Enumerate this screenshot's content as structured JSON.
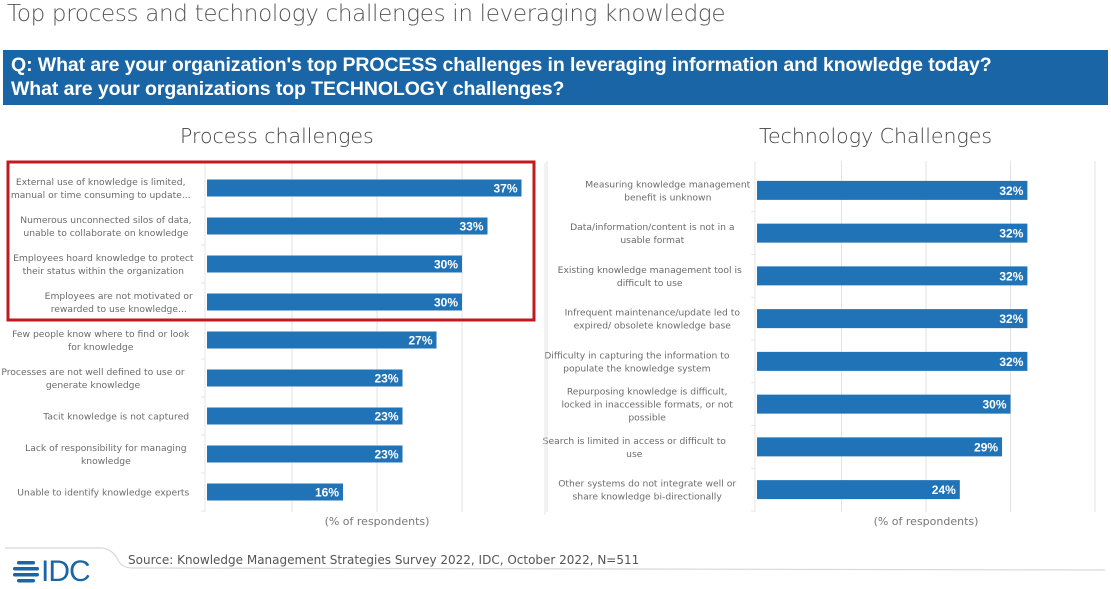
{
  "page": {
    "title": "Top process and technology challenges in leveraging knowledge",
    "question_line1": "Q: What are your organization's top PROCESS challenges in leveraging information and knowledge today?",
    "question_line2": "What are your organizations top TECHNOLOGY challenges?",
    "source": "Source: Knowledge Management Strategies Survey 2022, IDC, October 2022, N=511",
    "logo_text": "IDC",
    "colors": {
      "banner": "#1a65a6",
      "bar": "#2173b8",
      "highlight_box": "#c0191f",
      "grid": "#e2e2e2"
    }
  },
  "chart_data": [
    {
      "type": "bar",
      "orientation": "horizontal",
      "title": "Process challenges",
      "xlabel": "(% of respondents)",
      "ylabel": "",
      "xlim": [
        0,
        40
      ],
      "grid": true,
      "value_suffix": "%",
      "highlighted_categories": [
        0,
        1,
        2,
        3
      ],
      "categories": [
        [
          "External use of knowledge is limited,",
          "manual or time consuming to update..."
        ],
        [
          "Numerous unconnected silos of data,",
          "unable to collaborate on knowledge"
        ],
        [
          "Employees hoard knowledge to protect",
          "their status within the organization"
        ],
        [
          "Employees are not motivated or",
          "rewarded to use knowledge..."
        ],
        [
          "Few people know where to find or look",
          "for knowledge"
        ],
        [
          "Processes are not well defined to use or",
          "generate knowledge"
        ],
        [
          "Tacit knowledge is not captured"
        ],
        [
          "Lack of responsibility for managing",
          "knowledge"
        ],
        [
          "Unable to identify knowledge experts"
        ]
      ],
      "values": [
        37,
        33,
        30,
        30,
        27,
        23,
        23,
        23,
        16
      ]
    },
    {
      "type": "bar",
      "orientation": "horizontal",
      "title": "Technology Challenges",
      "xlabel": "(% of respondents)",
      "ylabel": "",
      "xlim": [
        0,
        40
      ],
      "grid": true,
      "value_suffix": "%",
      "categories": [
        [
          "Measuring knowledge management",
          "benefit is unknown"
        ],
        [
          "Data/information/content is not in a",
          "usable format"
        ],
        [
          "Existing knowledge management tool is",
          "difficult to use"
        ],
        [
          "Infrequent maintenance/update led to",
          "expired/ obsolete knowledge base"
        ],
        [
          "Difficulty in capturing the information to",
          "populate the knowledge system"
        ],
        [
          "Repurposing knowledge is difficult,",
          "locked in inaccessible formats, or not",
          "possible"
        ],
        [
          "Search is limited in access or difficult to",
          "use"
        ],
        [
          "Other systems do not integrate well or",
          "share knowledge bi-directionally"
        ]
      ],
      "values": [
        32,
        32,
        32,
        32,
        32,
        30,
        29,
        24
      ]
    }
  ]
}
